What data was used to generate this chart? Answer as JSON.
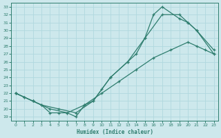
{
  "xlabel": "Humidex (Indice chaleur)",
  "background_color": "#cde8ec",
  "grid_color": "#b0d8de",
  "line_color": "#2e7d6e",
  "xlim": [
    -0.5,
    23.5
  ],
  "ylim": [
    18.5,
    33.5
  ],
  "xticks": [
    0,
    1,
    2,
    3,
    4,
    5,
    6,
    7,
    8,
    9,
    10,
    11,
    12,
    13,
    14,
    15,
    16,
    17,
    18,
    19,
    20,
    21,
    22,
    23
  ],
  "yticks": [
    19,
    20,
    21,
    22,
    23,
    24,
    25,
    26,
    27,
    28,
    29,
    30,
    31,
    32,
    33
  ],
  "line1_x": [
    0,
    1,
    2,
    3,
    5,
    7,
    9,
    10,
    11,
    13,
    14,
    15,
    16,
    17,
    19,
    20,
    21,
    23
  ],
  "line1_y": [
    22,
    21.5,
    21,
    20.5,
    20,
    19.5,
    21,
    22.5,
    24,
    26,
    27,
    29,
    32,
    33,
    31.5,
    31,
    30,
    27
  ],
  "line2_x": [
    0,
    1,
    2,
    3,
    4,
    5,
    6,
    7,
    8,
    9,
    11,
    13,
    15,
    17,
    19,
    20,
    21,
    23
  ],
  "line2_y": [
    22,
    21.5,
    21,
    20.5,
    19.5,
    19.5,
    19.5,
    19,
    20.5,
    21,
    24,
    26,
    29,
    32,
    32,
    31,
    30,
    27.5
  ],
  "line3_x": [
    0,
    2,
    4,
    6,
    8,
    10,
    12,
    14,
    16,
    18,
    20,
    21,
    22,
    23
  ],
  "line3_y": [
    22,
    21,
    20,
    19.5,
    20.5,
    22,
    23.5,
    25,
    26.5,
    27.5,
    28.5,
    28,
    27.5,
    27
  ]
}
